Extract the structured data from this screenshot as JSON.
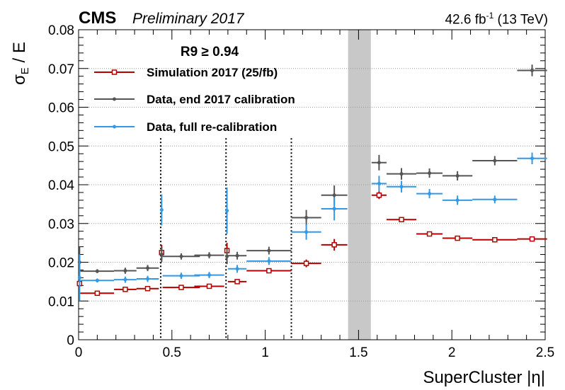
{
  "header": {
    "experiment": "CMS",
    "status": "Preliminary 2017",
    "lumi_prefix": "42.6 fb",
    "lumi_exp": "-1",
    "lumi_suffix": " (13 TeV)"
  },
  "chart_data": {
    "type": "scatter",
    "xlabel": "SuperCluster |η|",
    "ylabel": "σ_E / E",
    "xlim": [
      0,
      2.5
    ],
    "ylim": [
      0,
      0.08
    ],
    "x_ticks": [
      "0",
      "0.5",
      "1",
      "1.5",
      "2",
      "2.5"
    ],
    "y_ticks": [
      "0",
      "0.01",
      "0.02",
      "0.03",
      "0.04",
      "0.05",
      "0.06",
      "0.07",
      "0.08"
    ],
    "grid": "horizontal dotted",
    "legend_position": "top-left",
    "legend_title": "R9 ≥ 0.94",
    "module_boundaries": [
      0.44,
      0.79,
      1.14
    ],
    "gap_band": [
      1.444,
      1.566
    ],
    "series": [
      {
        "name": "Simulation 2017 (25/fb)",
        "color": "#b40000",
        "marker": "open-square",
        "points": [
          {
            "x": 0.005,
            "xerr": 0.005,
            "y": 0.0145,
            "yerr": 0.001
          },
          {
            "x": 0.1,
            "xerr": 0.09,
            "y": 0.012,
            "yerr": 0.0004
          },
          {
            "x": 0.25,
            "xerr": 0.06,
            "y": 0.013,
            "yerr": 0.0004
          },
          {
            "x": 0.37,
            "xerr": 0.06,
            "y": 0.0132,
            "yerr": 0.0004
          },
          {
            "x": 0.445,
            "xerr": 0.005,
            "y": 0.0225,
            "yerr": 0.002
          },
          {
            "x": 0.55,
            "xerr": 0.1,
            "y": 0.0135,
            "yerr": 0.0004
          },
          {
            "x": 0.7,
            "xerr": 0.08,
            "y": 0.0138,
            "yerr": 0.0004
          },
          {
            "x": 0.795,
            "xerr": 0.005,
            "y": 0.023,
            "yerr": 0.002
          },
          {
            "x": 0.85,
            "xerr": 0.05,
            "y": 0.015,
            "yerr": 0.0006
          },
          {
            "x": 1.02,
            "xerr": 0.12,
            "y": 0.0178,
            "yerr": 0.0006
          },
          {
            "x": 1.22,
            "xerr": 0.08,
            "y": 0.0197,
            "yerr": 0.001
          },
          {
            "x": 1.37,
            "xerr": 0.07,
            "y": 0.0245,
            "yerr": 0.0015
          },
          {
            "x": 1.61,
            "xerr": 0.04,
            "y": 0.0373,
            "yerr": 0.001
          },
          {
            "x": 1.73,
            "xerr": 0.08,
            "y": 0.031,
            "yerr": 0.0006
          },
          {
            "x": 1.88,
            "xerr": 0.07,
            "y": 0.0273,
            "yerr": 0.0005
          },
          {
            "x": 2.03,
            "xerr": 0.08,
            "y": 0.0262,
            "yerr": 0.0005
          },
          {
            "x": 2.23,
            "xerr": 0.12,
            "y": 0.0258,
            "yerr": 0.0005
          },
          {
            "x": 2.43,
            "xerr": 0.08,
            "y": 0.026,
            "yerr": 0.0005
          }
        ]
      },
      {
        "name": "Data, end 2017 calibration",
        "color": "#555555",
        "marker": "dot",
        "points": [
          {
            "x": 0.005,
            "xerr": 0.005,
            "y": 0.02,
            "yerr": 0.004
          },
          {
            "x": 0.1,
            "xerr": 0.09,
            "y": 0.0177,
            "yerr": 0.0005
          },
          {
            "x": 0.25,
            "xerr": 0.06,
            "y": 0.0178,
            "yerr": 0.0008
          },
          {
            "x": 0.37,
            "xerr": 0.06,
            "y": 0.0185,
            "yerr": 0.0008
          },
          {
            "x": 0.445,
            "xerr": 0.005,
            "y": 0.022,
            "yerr": 0.002
          },
          {
            "x": 0.55,
            "xerr": 0.1,
            "y": 0.0215,
            "yerr": 0.0008
          },
          {
            "x": 0.7,
            "xerr": 0.08,
            "y": 0.0218,
            "yerr": 0.0008
          },
          {
            "x": 0.795,
            "xerr": 0.005,
            "y": 0.0215,
            "yerr": 0.002
          },
          {
            "x": 0.85,
            "xerr": 0.05,
            "y": 0.0217,
            "yerr": 0.001
          },
          {
            "x": 1.02,
            "xerr": 0.12,
            "y": 0.023,
            "yerr": 0.001
          },
          {
            "x": 1.22,
            "xerr": 0.08,
            "y": 0.0315,
            "yerr": 0.002
          },
          {
            "x": 1.37,
            "xerr": 0.07,
            "y": 0.0373,
            "yerr": 0.0025
          },
          {
            "x": 1.61,
            "xerr": 0.04,
            "y": 0.0457,
            "yerr": 0.002
          },
          {
            "x": 1.73,
            "xerr": 0.08,
            "y": 0.0428,
            "yerr": 0.0015
          },
          {
            "x": 1.88,
            "xerr": 0.07,
            "y": 0.043,
            "yerr": 0.0012
          },
          {
            "x": 2.03,
            "xerr": 0.08,
            "y": 0.0423,
            "yerr": 0.0012
          },
          {
            "x": 2.23,
            "xerr": 0.12,
            "y": 0.0462,
            "yerr": 0.0012
          },
          {
            "x": 2.43,
            "xerr": 0.08,
            "y": 0.0695,
            "yerr": 0.0015
          }
        ]
      },
      {
        "name": "Data, full re-calibration",
        "color": "#3399e6",
        "marker": "dot",
        "points": [
          {
            "x": 0.005,
            "xerr": 0.005,
            "y": 0.016,
            "yerr": 0.006
          },
          {
            "x": 0.1,
            "xerr": 0.09,
            "y": 0.0153,
            "yerr": 0.0005
          },
          {
            "x": 0.25,
            "xerr": 0.06,
            "y": 0.0155,
            "yerr": 0.0008
          },
          {
            "x": 0.37,
            "xerr": 0.06,
            "y": 0.0157,
            "yerr": 0.0008
          },
          {
            "x": 0.445,
            "xerr": 0.005,
            "y": 0.0335,
            "yerr": 0.004
          },
          {
            "x": 0.55,
            "xerr": 0.1,
            "y": 0.0165,
            "yerr": 0.0008
          },
          {
            "x": 0.7,
            "xerr": 0.08,
            "y": 0.0167,
            "yerr": 0.0008
          },
          {
            "x": 0.795,
            "xerr": 0.005,
            "y": 0.0333,
            "yerr": 0.006
          },
          {
            "x": 0.85,
            "xerr": 0.05,
            "y": 0.0183,
            "yerr": 0.001
          },
          {
            "x": 1.02,
            "xerr": 0.12,
            "y": 0.0203,
            "yerr": 0.001
          },
          {
            "x": 1.22,
            "xerr": 0.08,
            "y": 0.0278,
            "yerr": 0.002
          },
          {
            "x": 1.37,
            "xerr": 0.07,
            "y": 0.0338,
            "yerr": 0.003
          },
          {
            "x": 1.61,
            "xerr": 0.04,
            "y": 0.0403,
            "yerr": 0.002
          },
          {
            "x": 1.73,
            "xerr": 0.08,
            "y": 0.0395,
            "yerr": 0.0015
          },
          {
            "x": 1.88,
            "xerr": 0.07,
            "y": 0.0377,
            "yerr": 0.0012
          },
          {
            "x": 2.03,
            "xerr": 0.08,
            "y": 0.036,
            "yerr": 0.0012
          },
          {
            "x": 2.23,
            "xerr": 0.12,
            "y": 0.0362,
            "yerr": 0.001
          },
          {
            "x": 2.43,
            "xerr": 0.08,
            "y": 0.0468,
            "yerr": 0.0015
          }
        ]
      }
    ]
  }
}
